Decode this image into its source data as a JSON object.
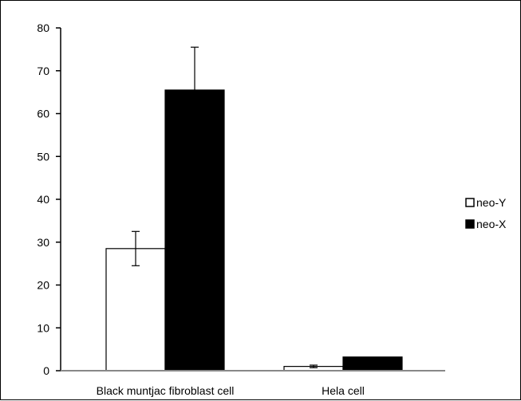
{
  "chart_data": {
    "type": "bar",
    "title": "",
    "xlabel": "",
    "ylabel": "",
    "categories": [
      "Black muntjac fibroblast  cell",
      "Hela cell"
    ],
    "series": [
      {
        "name": "neo-Y",
        "values": [
          28.5,
          1.0
        ],
        "errors": [
          4.0,
          0.3
        ],
        "color": "#ffffff",
        "stroke": "#000000"
      },
      {
        "name": "neo-X",
        "values": [
          65.5,
          3.2
        ],
        "errors": [
          10.0,
          0.0
        ],
        "color": "#000000",
        "stroke": "#000000"
      }
    ],
    "ylim": [
      0,
      80
    ],
    "yticks": [
      0,
      10,
      20,
      30,
      40,
      50,
      60,
      70,
      80
    ],
    "grid": false,
    "legend_position": "right"
  }
}
